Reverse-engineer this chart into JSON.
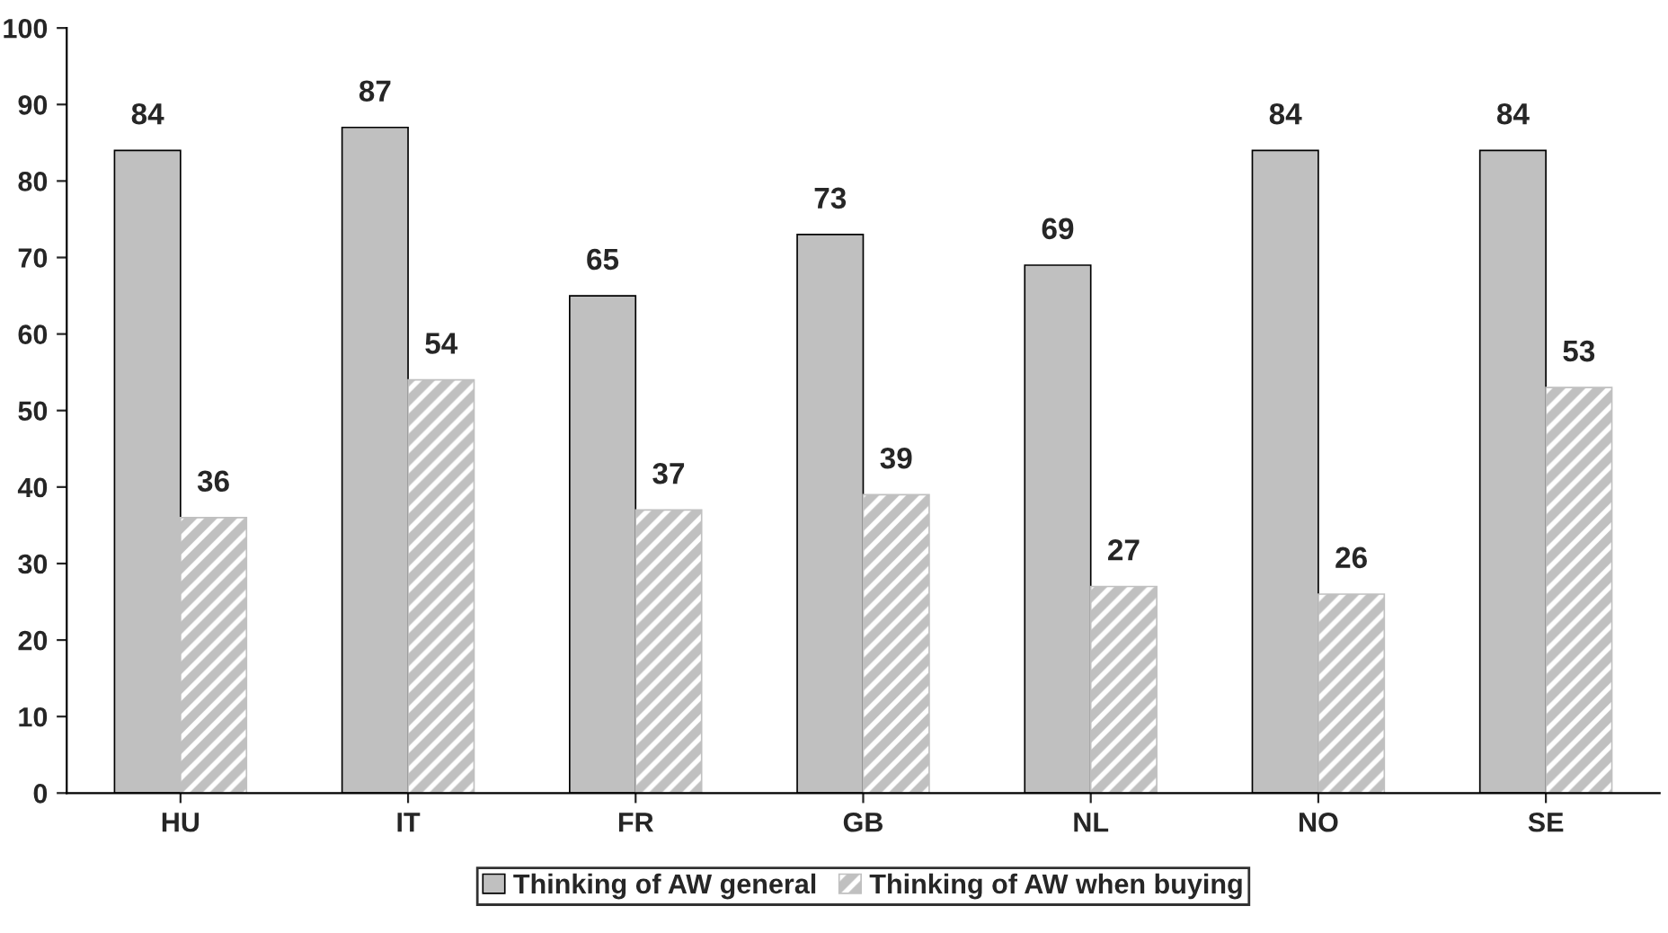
{
  "chart_data": {
    "type": "bar",
    "categories": [
      "HU",
      "IT",
      "FR",
      "GB",
      "NL",
      "NO",
      "SE"
    ],
    "series": [
      {
        "name": "Thinking of AW general",
        "color": "#c0c0c0",
        "values": [
          84,
          87,
          65,
          73,
          69,
          84,
          84
        ]
      },
      {
        "name": "Thinking of AW when buying",
        "color": "#c0c0c0",
        "values": [
          36,
          54,
          37,
          39,
          27,
          26,
          53
        ]
      }
    ],
    "ylim": [
      0,
      100
    ],
    "yticks": [
      0,
      10,
      20,
      30,
      40,
      50,
      60,
      70,
      80,
      90,
      100
    ],
    "data_labels": true,
    "grid": false,
    "legend": "bottom"
  }
}
